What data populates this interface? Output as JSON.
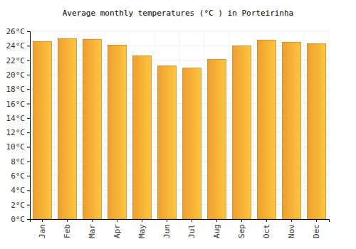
{
  "chart_data": {
    "type": "bar",
    "title": "Average monthly temperatures (°C ) in Porteirinha",
    "categories": [
      "Jan",
      "Feb",
      "Mar",
      "Apr",
      "May",
      "Jun",
      "Jul",
      "Aug",
      "Sep",
      "Oct",
      "Nov",
      "Dec"
    ],
    "values": [
      24.6,
      25.0,
      24.9,
      24.1,
      22.6,
      21.2,
      20.9,
      22.1,
      24.0,
      24.8,
      24.5,
      24.3
    ],
    "color": "#fca830",
    "ylim": [
      0,
      26
    ],
    "yticks": [
      {
        "value": 0,
        "label": "0°C"
      },
      {
        "value": 2,
        "label": "2°C"
      },
      {
        "value": 4,
        "label": "4°C"
      },
      {
        "value": 6,
        "label": "6°C"
      },
      {
        "value": 8,
        "label": "8°C"
      },
      {
        "value": 10,
        "label": "10°C"
      },
      {
        "value": 12,
        "label": "12°C"
      },
      {
        "value": 14,
        "label": "14°C"
      },
      {
        "value": 16,
        "label": "16°C"
      },
      {
        "value": 18,
        "label": "18°C"
      },
      {
        "value": 20,
        "label": "20°C"
      },
      {
        "value": 22,
        "label": "22°C"
      },
      {
        "value": 24,
        "label": "24°C"
      },
      {
        "value": 26,
        "label": "26°C"
      }
    ],
    "grid": true
  }
}
